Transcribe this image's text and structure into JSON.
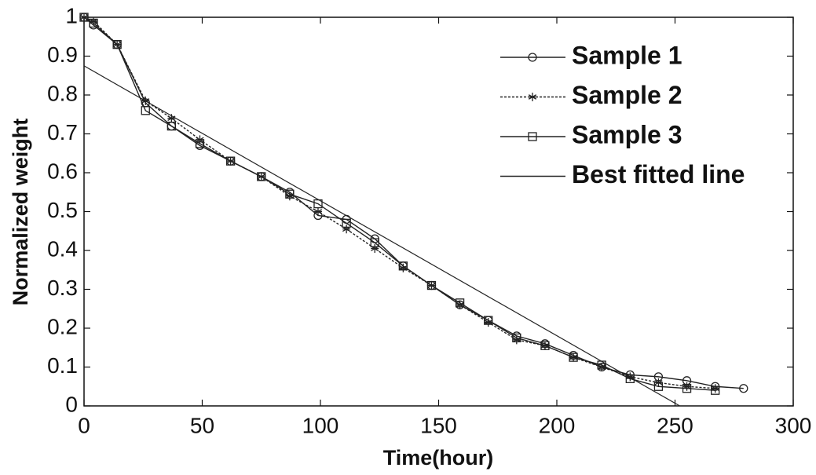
{
  "chart_data": {
    "type": "line",
    "xlabel": "Time(hour)",
    "ylabel": "Normalized weight",
    "x": [
      0,
      4,
      14,
      26,
      37,
      49,
      62,
      75,
      87,
      99,
      111,
      123,
      135,
      147,
      159,
      171,
      183,
      195,
      207,
      219,
      231,
      243,
      255,
      267,
      279
    ],
    "series": [
      {
        "name": "Sample 1",
        "color": "#222222",
        "marker": "circle",
        "values": [
          1.0,
          0.98,
          0.93,
          0.78,
          0.72,
          0.67,
          0.63,
          0.59,
          0.55,
          0.49,
          0.48,
          0.43,
          0.36,
          0.31,
          0.26,
          0.22,
          0.18,
          0.16,
          0.13,
          0.1,
          0.08,
          0.075,
          0.065,
          0.05,
          0.045
        ]
      },
      {
        "name": "Sample 2",
        "color": "#222222",
        "marker": "star",
        "values": [
          1.0,
          0.99,
          0.93,
          0.785,
          0.74,
          0.685,
          0.63,
          0.59,
          0.54,
          0.5,
          0.455,
          0.405,
          0.355,
          0.31,
          0.26,
          0.215,
          0.17,
          0.155,
          0.125,
          0.1,
          0.075,
          0.06,
          0.05,
          0.045,
          null
        ]
      },
      {
        "name": "Sample 3",
        "color": "#222222",
        "marker": "square",
        "values": [
          1.0,
          0.985,
          0.93,
          0.76,
          0.72,
          0.675,
          0.63,
          0.59,
          0.545,
          0.52,
          0.47,
          0.42,
          0.36,
          0.31,
          0.265,
          0.22,
          0.175,
          0.155,
          0.125,
          0.105,
          0.07,
          0.05,
          0.045,
          0.04,
          null
        ]
      },
      {
        "name": "Best fitted line",
        "color": "#222222",
        "marker": "none",
        "x": [
          0,
          252
        ],
        "values": [
          0.875,
          0
        ]
      }
    ],
    "xlim": [
      0,
      300
    ],
    "xticks": [
      0,
      50,
      100,
      150,
      200,
      250,
      300
    ],
    "ylim": [
      0,
      1
    ],
    "yticks": [
      0,
      0.1,
      0.2,
      0.3,
      0.4,
      0.5,
      0.6,
      0.7,
      0.8,
      0.9,
      1
    ],
    "legend": "upper right"
  }
}
